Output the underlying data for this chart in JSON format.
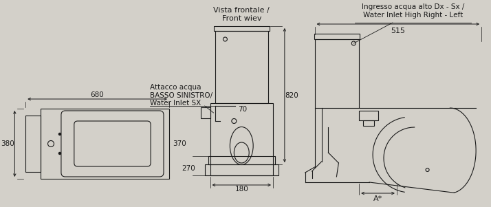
{
  "bg_hex": "#d3d0c9",
  "line_color": "#1a1a1a",
  "annotations": {
    "vista_frontale": "Vista frontale /\nFront wiev",
    "ingresso_acqua": "Ingresso acqua alto Dx - Sx /\nWater Inlet High Right - Left",
    "attacco_acqua": "Attacco acqua\nBASSO SINISTRO/\nWater Inlet SX",
    "dim_680": "680",
    "dim_380": "380",
    "dim_370": "370",
    "dim_820": "820",
    "dim_515": "515",
    "dim_270": "270",
    "dim_180": "180",
    "dim_70": "70",
    "dim_A": "A*"
  }
}
